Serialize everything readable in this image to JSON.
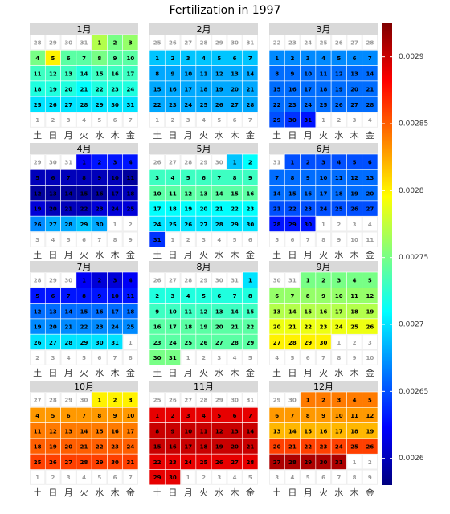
{
  "chart_data": {
    "type": "calendar_heatmap",
    "title": "Fertilization in 1997",
    "weekdays": [
      "土",
      "日",
      "月",
      "火",
      "水",
      "木",
      "金"
    ],
    "clim": [
      0.00258,
      0.002925
    ],
    "cticks": [
      0.0026,
      0.00265,
      0.0027,
      0.00275,
      0.0028,
      0.00285,
      0.0029
    ],
    "colors": [
      "#00007f",
      "#0000ff",
      "#007fff",
      "#00ffff",
      "#7fff7f",
      "#ffff00",
      "#ff7f00",
      "#ff0000",
      "#7f0000"
    ],
    "months": [
      {
        "name": "1月",
        "days": [
          28,
          29,
          30,
          31,
          1,
          2,
          3,
          4,
          5,
          6,
          7,
          8,
          9,
          10,
          11,
          12,
          13,
          14,
          15,
          16,
          17,
          18,
          19,
          20,
          21,
          22,
          23,
          24,
          25,
          26,
          27,
          28,
          29,
          30,
          31,
          1,
          2,
          3,
          4,
          5,
          6,
          7
        ],
        "values": [
          null,
          null,
          null,
          null,
          0.00277,
          0.00275,
          0.00276,
          0.00275,
          0.0028,
          0.00274,
          0.00274,
          0.00275,
          0.00274,
          0.00274,
          0.00273,
          0.00273,
          0.00273,
          0.00272,
          0.00273,
          0.00273,
          0.00273,
          0.00272,
          0.00272,
          0.00272,
          0.00271,
          0.00272,
          0.00272,
          0.00272,
          0.0027,
          0.0027,
          0.0027,
          0.0027,
          0.0027,
          0.0027,
          0.0027,
          null,
          null,
          null,
          null,
          null,
          null,
          null
        ]
      },
      {
        "name": "2月",
        "days": [
          25,
          26,
          27,
          28,
          29,
          30,
          31,
          1,
          2,
          3,
          4,
          5,
          6,
          7,
          8,
          9,
          10,
          11,
          12,
          13,
          14,
          15,
          16,
          17,
          18,
          19,
          20,
          21,
          22,
          23,
          24,
          25,
          26,
          27,
          28,
          1,
          2,
          3,
          4,
          5,
          6,
          7
        ],
        "values": [
          null,
          null,
          null,
          null,
          null,
          null,
          null,
          0.00269,
          0.00269,
          0.00269,
          0.00269,
          0.00269,
          0.00269,
          0.00269,
          0.00268,
          0.00268,
          0.00268,
          0.00268,
          0.00268,
          0.00268,
          0.00268,
          0.00268,
          0.00268,
          0.00268,
          0.00268,
          0.00268,
          0.00268,
          0.00268,
          0.00268,
          0.00268,
          0.00268,
          0.00268,
          0.00268,
          0.00268,
          0.00268,
          null,
          null,
          null,
          null,
          null,
          null,
          null
        ]
      },
      {
        "name": "3月",
        "days": [
          22,
          23,
          24,
          25,
          26,
          27,
          28,
          1,
          2,
          3,
          4,
          5,
          6,
          7,
          8,
          9,
          10,
          11,
          12,
          13,
          14,
          15,
          16,
          17,
          18,
          19,
          20,
          21,
          22,
          23,
          24,
          25,
          26,
          27,
          28,
          29,
          30,
          31,
          1,
          2,
          3,
          4
        ],
        "values": [
          null,
          null,
          null,
          null,
          null,
          null,
          null,
          0.00267,
          0.00267,
          0.00267,
          0.00267,
          0.00267,
          0.00267,
          0.00267,
          0.00266,
          0.00266,
          0.00266,
          0.00266,
          0.00266,
          0.00266,
          0.00266,
          0.00266,
          0.00266,
          0.00266,
          0.00266,
          0.00266,
          0.00266,
          0.00266,
          0.00266,
          0.00266,
          0.00266,
          0.00266,
          0.00266,
          0.00266,
          0.00266,
          0.00265,
          0.00264,
          0.00263,
          null,
          null,
          null,
          null
        ]
      },
      {
        "name": "4月",
        "days": [
          29,
          30,
          31,
          1,
          2,
          3,
          4,
          5,
          6,
          7,
          8,
          9,
          10,
          11,
          12,
          13,
          14,
          15,
          16,
          17,
          18,
          19,
          20,
          21,
          22,
          23,
          24,
          25,
          26,
          27,
          28,
          29,
          30,
          1,
          2,
          3,
          4,
          5,
          6,
          7,
          8,
          9
        ],
        "values": [
          null,
          null,
          null,
          0.00262,
          0.00263,
          0.00263,
          0.00263,
          0.0026,
          0.0026,
          0.0026,
          0.0026,
          0.0026,
          0.0026,
          0.00259,
          0.00259,
          0.00259,
          0.00259,
          0.00259,
          0.00259,
          0.0026,
          0.0026,
          0.00261,
          0.0026,
          0.0026,
          0.0026,
          0.00261,
          0.00261,
          0.00261,
          0.00267,
          0.00268,
          0.00268,
          0.00269,
          0.00268,
          null,
          null,
          null,
          null,
          null,
          null,
          null,
          null,
          null
        ]
      },
      {
        "name": "5月",
        "days": [
          26,
          27,
          28,
          29,
          30,
          1,
          2,
          3,
          4,
          5,
          6,
          7,
          8,
          9,
          10,
          11,
          12,
          13,
          14,
          15,
          16,
          17,
          18,
          19,
          20,
          21,
          22,
          23,
          24,
          25,
          26,
          27,
          28,
          29,
          30,
          31,
          1,
          2,
          3,
          4,
          5,
          6
        ],
        "values": [
          null,
          null,
          null,
          null,
          null,
          0.00269,
          0.00271,
          0.00273,
          0.00273,
          0.00273,
          0.00273,
          0.00273,
          0.00273,
          0.00273,
          0.00274,
          0.00274,
          0.00274,
          0.00274,
          0.00274,
          0.00274,
          0.00274,
          0.00271,
          0.00271,
          0.00271,
          0.00271,
          0.00271,
          0.00271,
          0.00271,
          0.0027,
          0.0027,
          0.0027,
          0.0027,
          0.0027,
          0.0027,
          0.0027,
          0.00264,
          null,
          null,
          null,
          null,
          null,
          null
        ]
      },
      {
        "name": "6月",
        "days": [
          31,
          1,
          2,
          3,
          4,
          5,
          6,
          7,
          8,
          9,
          10,
          11,
          12,
          13,
          14,
          15,
          16,
          17,
          18,
          19,
          20,
          21,
          22,
          23,
          24,
          25,
          26,
          27,
          28,
          29,
          30,
          1,
          2,
          3,
          4,
          5,
          6,
          7,
          8,
          9,
          10,
          11
        ],
        "values": [
          null,
          0.00265,
          0.00265,
          0.00265,
          0.00265,
          0.00265,
          0.00265,
          0.00266,
          0.00266,
          0.00266,
          0.00266,
          0.00266,
          0.00266,
          0.00266,
          0.00266,
          0.00266,
          0.00266,
          0.00266,
          0.00266,
          0.00266,
          0.00266,
          0.00265,
          0.00265,
          0.00265,
          0.00265,
          0.00265,
          0.00265,
          0.00265,
          0.00263,
          0.00263,
          0.00263,
          null,
          null,
          null,
          null,
          null,
          null,
          null,
          null,
          null,
          null,
          null
        ]
      },
      {
        "name": "7月",
        "days": [
          28,
          29,
          30,
          1,
          2,
          3,
          4,
          5,
          6,
          7,
          8,
          9,
          10,
          11,
          12,
          13,
          14,
          15,
          16,
          17,
          18,
          19,
          20,
          21,
          22,
          23,
          24,
          25,
          26,
          27,
          28,
          29,
          30,
          31,
          1,
          2,
          3,
          4,
          5,
          6,
          7,
          8
        ],
        "values": [
          null,
          null,
          null,
          0.00262,
          0.00261,
          0.00261,
          0.00262,
          0.00263,
          0.00263,
          0.00263,
          0.00263,
          0.00263,
          0.00263,
          0.00263,
          0.00266,
          0.00266,
          0.00266,
          0.00266,
          0.00266,
          0.00266,
          0.00266,
          0.00267,
          0.00267,
          0.00267,
          0.00267,
          0.00267,
          0.00267,
          0.00267,
          0.0027,
          0.0027,
          0.0027,
          0.0027,
          0.0027,
          0.0027,
          null,
          null,
          null,
          null,
          null,
          null,
          null,
          null
        ]
      },
      {
        "name": "8月",
        "days": [
          26,
          27,
          28,
          29,
          30,
          31,
          1,
          2,
          3,
          4,
          5,
          6,
          7,
          8,
          9,
          10,
          11,
          12,
          13,
          14,
          15,
          16,
          17,
          18,
          19,
          20,
          21,
          22,
          23,
          24,
          25,
          26,
          27,
          28,
          29,
          30,
          31,
          1,
          2,
          3,
          4,
          5
        ],
        "values": [
          null,
          null,
          null,
          null,
          null,
          null,
          0.0027,
          0.00272,
          0.00272,
          0.00272,
          0.00272,
          0.00272,
          0.00272,
          0.00272,
          0.00273,
          0.00273,
          0.00273,
          0.00273,
          0.00273,
          0.00273,
          0.00273,
          0.00274,
          0.00274,
          0.00274,
          0.00274,
          0.00274,
          0.00274,
          0.00274,
          0.00274,
          0.00274,
          0.00274,
          0.00274,
          0.00274,
          0.00274,
          0.00274,
          0.00275,
          0.00275,
          null,
          null,
          null,
          null,
          null
        ]
      },
      {
        "name": "9月",
        "days": [
          30,
          31,
          1,
          2,
          3,
          4,
          5,
          6,
          7,
          8,
          9,
          10,
          11,
          12,
          13,
          14,
          15,
          16,
          17,
          18,
          19,
          20,
          21,
          22,
          23,
          24,
          25,
          26,
          27,
          28,
          29,
          30,
          1,
          2,
          3,
          4,
          5,
          6,
          7,
          8,
          9,
          10
        ],
        "values": [
          null,
          null,
          0.00275,
          0.00275,
          0.00275,
          0.00275,
          0.00275,
          0.00276,
          0.00276,
          0.00276,
          0.00276,
          0.00276,
          0.00276,
          0.00276,
          0.00277,
          0.00277,
          0.00277,
          0.00277,
          0.00277,
          0.00277,
          0.00277,
          0.00279,
          0.00279,
          0.00279,
          0.00279,
          0.00279,
          0.00279,
          0.00279,
          0.0028,
          0.0028,
          0.0028,
          0.0028,
          null,
          null,
          null,
          null,
          null,
          null,
          null,
          null,
          null,
          null
        ]
      },
      {
        "name": "10月",
        "days": [
          27,
          28,
          29,
          30,
          1,
          2,
          3,
          4,
          5,
          6,
          7,
          8,
          9,
          10,
          11,
          12,
          13,
          14,
          15,
          16,
          17,
          18,
          19,
          20,
          21,
          22,
          23,
          24,
          25,
          26,
          27,
          28,
          29,
          30,
          31,
          1,
          2,
          3,
          4,
          5,
          6,
          7
        ],
        "values": [
          null,
          null,
          null,
          null,
          0.0028,
          0.0028,
          0.0028,
          0.00283,
          0.00283,
          0.00283,
          0.00283,
          0.00283,
          0.00283,
          0.00283,
          0.00284,
          0.00284,
          0.00284,
          0.00284,
          0.00284,
          0.00284,
          0.00284,
          0.00285,
          0.00285,
          0.00285,
          0.00285,
          0.00285,
          0.00285,
          0.00285,
          0.00286,
          0.00286,
          0.00286,
          0.00286,
          0.00286,
          0.00286,
          0.00286,
          null,
          null,
          null,
          null,
          null,
          null,
          null
        ]
      },
      {
        "name": "11月",
        "days": [
          25,
          26,
          27,
          28,
          29,
          30,
          31,
          1,
          2,
          3,
          4,
          5,
          6,
          7,
          8,
          9,
          10,
          11,
          12,
          13,
          14,
          15,
          16,
          17,
          18,
          19,
          20,
          21,
          22,
          23,
          24,
          25,
          26,
          27,
          28,
          29,
          30,
          1,
          2,
          3,
          4,
          5
        ],
        "values": [
          null,
          null,
          null,
          null,
          null,
          null,
          null,
          0.00289,
          0.00289,
          0.00289,
          0.00289,
          0.00289,
          0.00289,
          0.00289,
          0.0029,
          0.0029,
          0.0029,
          0.0029,
          0.0029,
          0.0029,
          0.0029,
          0.0029,
          0.0029,
          0.0029,
          0.0029,
          0.0029,
          0.0029,
          0.0029,
          0.00289,
          0.00289,
          0.00289,
          0.00289,
          0.00289,
          0.00289,
          0.00289,
          0.00289,
          0.00289,
          null,
          null,
          null,
          null,
          null
        ]
      },
      {
        "name": "12月",
        "days": [
          29,
          30,
          1,
          2,
          3,
          4,
          5,
          6,
          7,
          8,
          9,
          10,
          11,
          12,
          13,
          14,
          15,
          16,
          17,
          18,
          19,
          20,
          21,
          22,
          23,
          24,
          25,
          26,
          27,
          28,
          29,
          30,
          31,
          1,
          2,
          3,
          4,
          5,
          6,
          7,
          8,
          9
        ],
        "values": [
          null,
          null,
          0.00284,
          0.00284,
          0.00284,
          0.00284,
          0.00284,
          0.00283,
          0.00283,
          0.00283,
          0.00283,
          0.00283,
          0.00283,
          0.00283,
          0.00282,
          0.00282,
          0.00282,
          0.00282,
          0.00282,
          0.00282,
          0.00282,
          0.00286,
          0.00286,
          0.00286,
          0.00286,
          0.00286,
          0.00286,
          0.00286,
          0.00291,
          0.00291,
          0.00291,
          0.00291,
          0.00291,
          null,
          null,
          null,
          null,
          null,
          null,
          null,
          null,
          null
        ]
      }
    ]
  }
}
